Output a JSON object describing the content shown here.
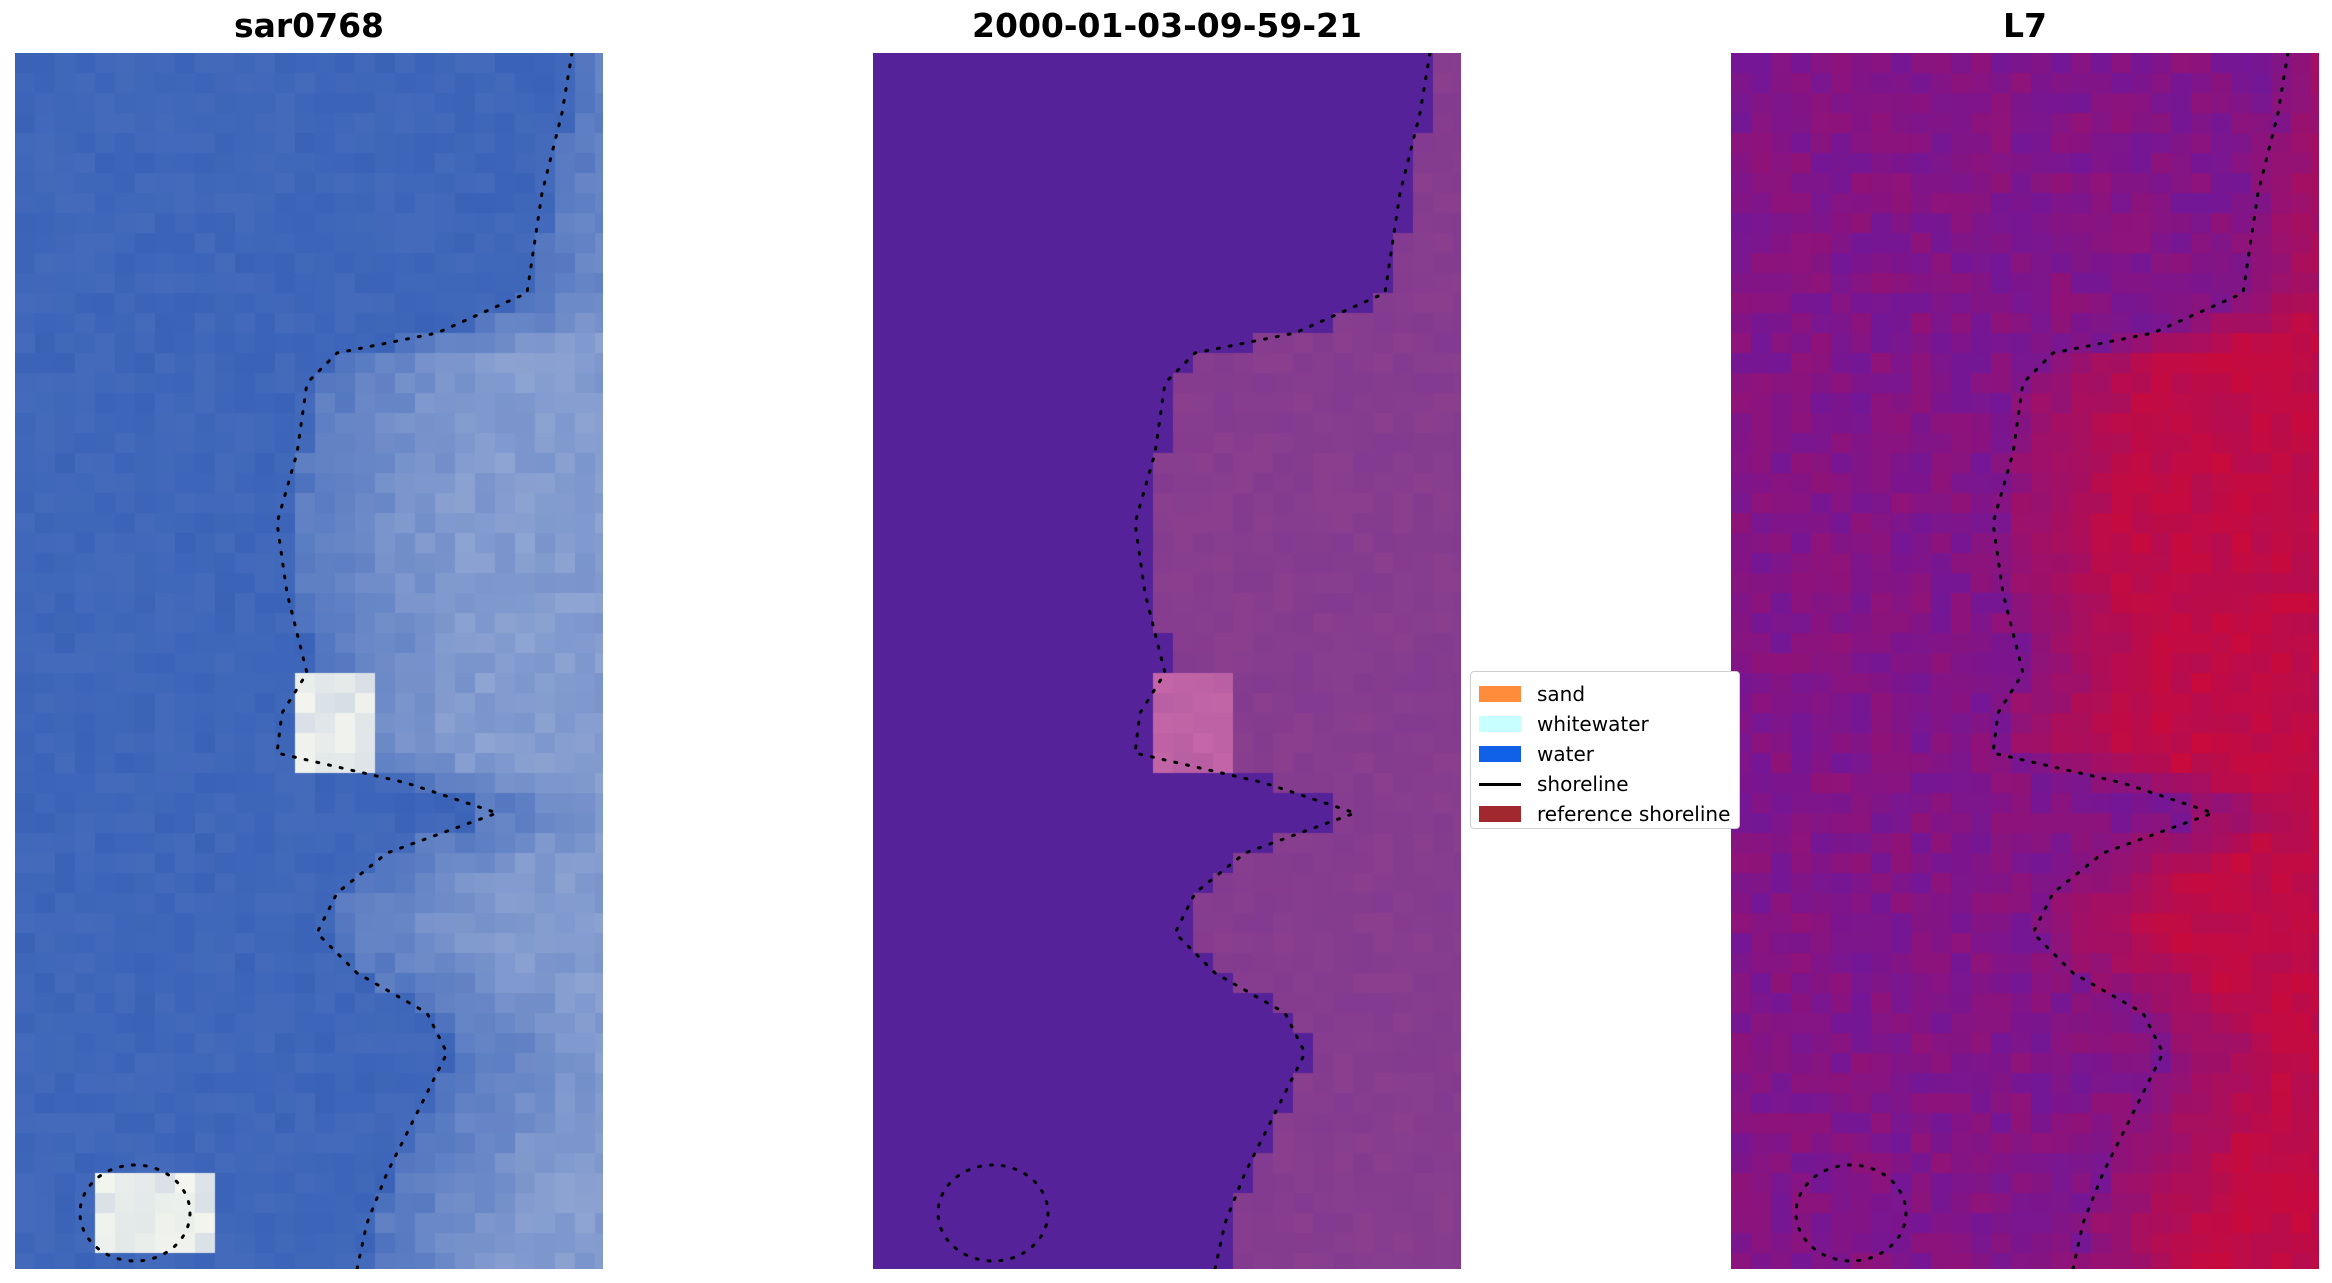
{
  "panels": [
    {
      "id": "rgb",
      "title": "sar0768"
    },
    {
      "id": "classified",
      "title": "2000-01-03-09-59-21"
    },
    {
      "id": "index",
      "title": "L7"
    }
  ],
  "legend": [
    {
      "label": "sand",
      "color": "#ff8c3a",
      "kind": "patch"
    },
    {
      "label": "whitewater",
      "color": "#c8ffff",
      "kind": "patch"
    },
    {
      "label": "water",
      "color": "#1060e8",
      "kind": "patch"
    },
    {
      "label": "shoreline",
      "color": "#000000",
      "kind": "line"
    },
    {
      "label": "reference shoreline",
      "color": "#a0282e",
      "kind": "patch"
    }
  ],
  "colors": {
    "rgb_water": "#3a63b8",
    "rgb_land": "#8ea4d2",
    "rgb_whitewater": "#f4f6ee",
    "class_water": "#55229a",
    "class_land": "#8a3f8e",
    "class_whitewater": "#c466a8",
    "index_low": "#6a18a0",
    "index_high": "#c80a3c",
    "shoreline": "#000000"
  }
}
